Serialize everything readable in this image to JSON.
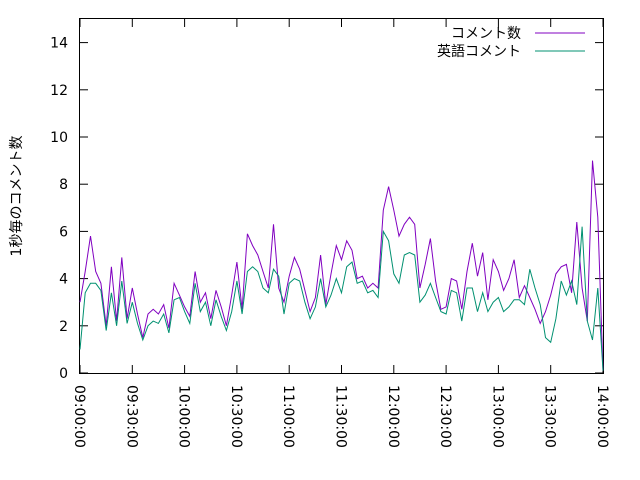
{
  "chart_data": {
    "type": "line",
    "xlabel": "",
    "ylabel": "1秒毎のコメント数",
    "ylim": [
      0,
      15
    ],
    "xlim": [
      "09:00:00",
      "14:00:00"
    ],
    "grid": false,
    "legend_position": "top-right",
    "y_ticks": [
      "0",
      "2",
      "4",
      "6",
      "8",
      "10",
      "12",
      "14"
    ],
    "x_ticks": [
      "09:00:00",
      "09:30:00",
      "10:00:00",
      "10:30:00",
      "11:00:00",
      "11:30:00",
      "12:00:00",
      "12:30:00",
      "13:00:00",
      "13:30:00",
      "14:00:00"
    ],
    "sample_interval_minutes": 3,
    "start_time": "09:00:00",
    "series": [
      {
        "name": "コメント数",
        "color": "#8000c0",
        "values": [
          3.0,
          4.3,
          5.8,
          4.3,
          3.8,
          2.0,
          4.5,
          2.2,
          4.9,
          2.3,
          3.6,
          2.5,
          1.5,
          2.5,
          2.7,
          2.5,
          2.9,
          1.9,
          3.8,
          3.3,
          2.8,
          2.4,
          4.3,
          3.0,
          3.4,
          2.3,
          3.5,
          2.8,
          2.0,
          3.3,
          4.7,
          2.7,
          5.9,
          5.4,
          5.0,
          4.3,
          3.6,
          6.3,
          3.6,
          3.0,
          4.1,
          4.9,
          4.4,
          3.5,
          2.6,
          3.2,
          5.0,
          2.9,
          4.2,
          5.4,
          4.8,
          5.6,
          5.2,
          4.0,
          4.1,
          3.6,
          3.8,
          3.6,
          6.9,
          7.9,
          6.9,
          5.8,
          6.3,
          6.6,
          6.3,
          3.6,
          4.6,
          5.7,
          3.9,
          2.7,
          2.8,
          4.0,
          3.9,
          2.7,
          4.3,
          5.5,
          4.1,
          5.1,
          3.1,
          4.8,
          4.3,
          3.5,
          4.0,
          4.8,
          3.2,
          3.7,
          3.2,
          2.7,
          2.1,
          2.6,
          3.3,
          4.2,
          4.5,
          4.6,
          3.4,
          6.4,
          3.6,
          2.2,
          9.0,
          6.6,
          0.1
        ]
      },
      {
        "name": "英語コメント",
        "color": "#009070",
        "values": [
          1.0,
          3.4,
          3.8,
          3.8,
          3.5,
          1.8,
          3.4,
          2.0,
          3.9,
          2.1,
          3.0,
          2.1,
          1.4,
          2.0,
          2.2,
          2.1,
          2.5,
          1.7,
          3.1,
          3.2,
          2.6,
          2.1,
          3.8,
          2.6,
          3.0,
          2.0,
          3.1,
          2.4,
          1.8,
          2.6,
          3.9,
          2.5,
          4.3,
          4.5,
          4.3,
          3.6,
          3.4,
          4.4,
          4.1,
          2.5,
          3.8,
          4.0,
          3.9,
          3.0,
          2.3,
          2.8,
          4.0,
          2.8,
          3.3,
          4.0,
          3.4,
          4.5,
          4.7,
          3.8,
          3.9,
          3.4,
          3.5,
          3.2,
          6.0,
          5.6,
          4.2,
          3.8,
          5.0,
          5.1,
          5.0,
          3.0,
          3.3,
          3.8,
          3.2,
          2.6,
          2.5,
          3.5,
          3.4,
          2.2,
          3.6,
          3.6,
          2.6,
          3.4,
          2.6,
          3.0,
          3.2,
          2.6,
          2.8,
          3.1,
          3.1,
          2.9,
          4.4,
          3.6,
          2.9,
          1.5,
          1.3,
          2.3,
          3.9,
          3.3,
          3.9,
          2.9,
          6.2,
          2.2,
          1.4,
          3.6,
          0.1
        ]
      }
    ]
  }
}
